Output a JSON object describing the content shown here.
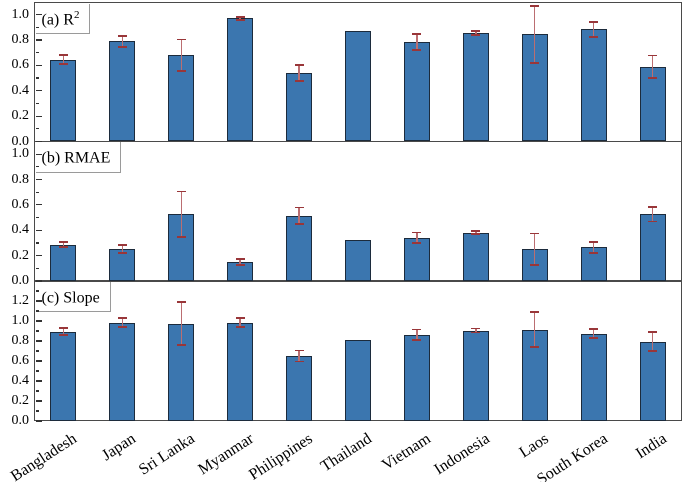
{
  "figure": {
    "background": "#ffffff",
    "colors": {
      "bar_fill": "#3b76af",
      "bar_edge": "#1c2b3c",
      "error_line": "#bb6e71",
      "error_cap": "#993639",
      "frame": "#4a4a4a",
      "tick": "#333333",
      "panel_label_box_border": "#9a9a9a"
    }
  },
  "chart_data": [
    {
      "type": "bar",
      "label": "(a) R",
      "label_sup": "2",
      "ylim": [
        0,
        1.1
      ],
      "yticks": [
        0.0,
        0.2,
        0.4,
        0.6,
        0.8,
        1.0
      ],
      "grid": false,
      "legend": "none",
      "categories": [
        "Bangladesh",
        "Japan",
        "Sri Lanka",
        "Myanmar",
        "Philippines",
        "Thailand",
        "Vietnam",
        "Indonesia",
        "Laos",
        "South Korea",
        "India"
      ],
      "values": [
        0.645,
        0.79,
        0.68,
        0.97,
        0.54,
        0.87,
        0.785,
        0.855,
        0.845,
        0.885,
        0.59
      ],
      "errors": [
        0.035,
        0.042,
        0.125,
        0.012,
        0.065,
        0,
        0.063,
        0.015,
        0.225,
        0.06,
        0.088
      ]
    },
    {
      "type": "bar",
      "label": "(b) RMAE",
      "label_sup": "",
      "ylim": [
        0,
        1.1
      ],
      "yticks": [
        0.0,
        0.2,
        0.4,
        0.6,
        0.8,
        1.0
      ],
      "grid": false,
      "legend": "none",
      "categories": [
        "Bangladesh",
        "Japan",
        "Sri Lanka",
        "Myanmar",
        "Philippines",
        "Thailand",
        "Vietnam",
        "Indonesia",
        "Laos",
        "South Korea",
        "India"
      ],
      "values": [
        0.285,
        0.255,
        0.525,
        0.15,
        0.515,
        0.32,
        0.34,
        0.38,
        0.25,
        0.265,
        0.525
      ],
      "errors": [
        0.02,
        0.032,
        0.18,
        0.025,
        0.065,
        0,
        0.042,
        0.012,
        0.124,
        0.042,
        0.056
      ]
    },
    {
      "type": "bar",
      "label": "(c) Slope",
      "label_sup": "",
      "ylim": [
        0,
        1.4
      ],
      "yticks": [
        0.0,
        0.2,
        0.4,
        0.6,
        0.8,
        1.0,
        1.2
      ],
      "grid": false,
      "legend": "none",
      "categories": [
        "Bangladesh",
        "Japan",
        "Sri Lanka",
        "Myanmar",
        "Philippines",
        "Thailand",
        "Vietnam",
        "Indonesia",
        "Laos",
        "South Korea",
        "India"
      ],
      "values": [
        0.895,
        0.985,
        0.975,
        0.985,
        0.65,
        0.813,
        0.863,
        0.905,
        0.915,
        0.875,
        0.795
      ],
      "errors": [
        0.032,
        0.045,
        0.215,
        0.048,
        0.056,
        0,
        0.052,
        0.02,
        0.172,
        0.046,
        0.095
      ]
    }
  ]
}
